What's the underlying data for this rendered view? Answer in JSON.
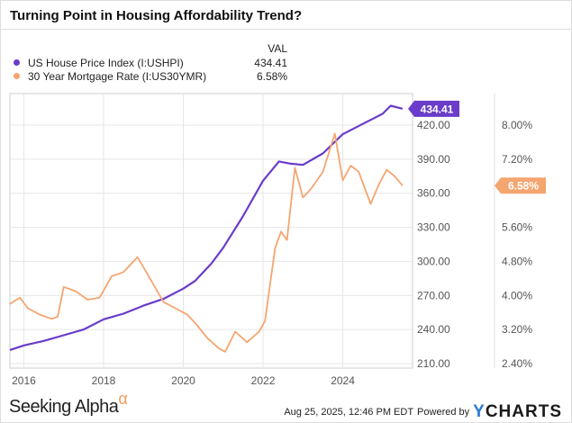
{
  "chart_data": {
    "type": "line",
    "title": "Turning Point in Housing Affordability Trend?",
    "legend": {
      "header": "VAL",
      "placement": "top-left"
    },
    "series": [
      {
        "name": "US House Price Index (I:USHPI)",
        "value_label": "434.41",
        "axis": "left",
        "color": "#6a3cc9",
        "x": [
          2015.65,
          2016.0,
          2016.5,
          2017.0,
          2017.5,
          2018.0,
          2018.5,
          2019.0,
          2019.5,
          2020.0,
          2020.3,
          2020.7,
          2021.0,
          2021.5,
          2022.0,
          2022.4,
          2022.7,
          2023.0,
          2023.5,
          2024.0,
          2024.5,
          2025.0,
          2025.2,
          2025.5
        ],
        "y": [
          222,
          226,
          230,
          235,
          240,
          249,
          254,
          261,
          267,
          276,
          283,
          298,
          312,
          340,
          371,
          388,
          386,
          385,
          395,
          412,
          421,
          430,
          437,
          434.41
        ]
      },
      {
        "name": "30 Year Mortgage Rate (I:US30YMR)",
        "value_label": "6.58%",
        "axis": "right",
        "color": "#f5a570",
        "x": [
          2015.65,
          2015.9,
          2016.1,
          2016.4,
          2016.7,
          2016.85,
          2017.0,
          2017.3,
          2017.6,
          2017.9,
          2018.2,
          2018.5,
          2018.85,
          2019.1,
          2019.5,
          2019.8,
          2020.1,
          2020.3,
          2020.6,
          2020.9,
          2021.05,
          2021.3,
          2021.6,
          2021.9,
          2022.05,
          2022.3,
          2022.45,
          2022.6,
          2022.8,
          2023.0,
          2023.2,
          2023.5,
          2023.8,
          2024.0,
          2024.2,
          2024.4,
          2024.7,
          2024.9,
          2025.1,
          2025.3,
          2025.5
        ],
        "y": [
          3.8,
          3.95,
          3.7,
          3.55,
          3.45,
          3.5,
          4.2,
          4.1,
          3.9,
          3.95,
          4.45,
          4.55,
          4.9,
          4.5,
          3.85,
          3.7,
          3.55,
          3.35,
          3.0,
          2.75,
          2.68,
          3.15,
          2.9,
          3.15,
          3.4,
          5.1,
          5.5,
          5.3,
          7.0,
          6.3,
          6.5,
          6.9,
          7.8,
          6.7,
          7.05,
          6.9,
          6.15,
          6.6,
          6.95,
          6.8,
          6.58
        ]
      }
    ],
    "x_ticks": [
      "2016",
      "2018",
      "2020",
      "2022",
      "2024"
    ],
    "x_tick_values": [
      2016,
      2018,
      2020,
      2022,
      2024
    ],
    "xlim": [
      2015.65,
      2025.75
    ],
    "left_axis": {
      "ticks": [
        "210.00",
        "240.00",
        "270.00",
        "300.00",
        "330.00",
        "360.00",
        "390.00",
        "420.00"
      ],
      "ylim": [
        210,
        420
      ]
    },
    "right_axis": {
      "ticks": [
        "2.40%",
        "3.20%",
        "4.00%",
        "4.80%",
        "5.60%",
        "6.40%",
        "7.20%",
        "8.00%"
      ],
      "hidden_tick": "6.40%",
      "ylim": [
        2.4,
        8.0
      ]
    },
    "grid": true
  },
  "footer": {
    "brand": "Seeking Alpha",
    "brand_mark": "α",
    "timestamp": "Aug 25, 2025, 12:46 PM EDT",
    "powered": "Powered by",
    "ycharts_y": "Y",
    "ycharts_rest": "CHARTS"
  }
}
